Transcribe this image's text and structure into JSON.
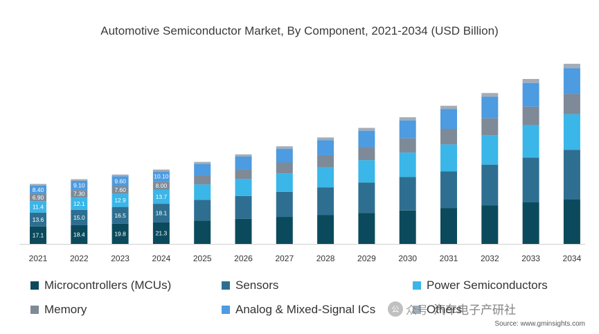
{
  "chart_data": {
    "type": "bar",
    "stacked": true,
    "title": "Automotive Semiconductor Market, By Component, 2021-2034 (USD Billion)",
    "categories": [
      "2021",
      "2022",
      "2023",
      "2024",
      "2025",
      "2026",
      "2027",
      "2028",
      "2029",
      "2030",
      "2031",
      "2032",
      "2033",
      "2034"
    ],
    "series": [
      {
        "name": "Microcontrollers (MCUs)",
        "color": "#0b4a5c",
        "values": [
          17.1,
          18.4,
          19.8,
          21.3,
          23.0,
          24.7,
          26.5,
          28.5,
          30.5,
          32.8,
          35.3,
          38.0,
          40.8,
          43.8
        ]
      },
      {
        "name": "Sensors",
        "color": "#2e6f91",
        "values": [
          13.6,
          15.0,
          16.5,
          18.1,
          20.3,
          22.4,
          24.6,
          27.1,
          29.8,
          32.9,
          36.0,
          39.8,
          44.0,
          48.6
        ]
      },
      {
        "name": "Power Semiconductors",
        "color": "#3ab6e8",
        "values": [
          11.4,
          12.1,
          12.9,
          13.7,
          15.1,
          16.6,
          18.2,
          19.9,
          21.9,
          24.0,
          26.4,
          28.9,
          31.8,
          34.9
        ]
      },
      {
        "name": "Memory",
        "color": "#7e8a98",
        "values": [
          6.9,
          7.3,
          7.6,
          8.0,
          8.9,
          9.7,
          10.6,
          11.6,
          12.7,
          13.9,
          15.2,
          16.6,
          18.2,
          19.9
        ]
      },
      {
        "name": "Analog & Mixed-Signal ICs",
        "color": "#4d9be0",
        "values": [
          8.4,
          9.1,
          9.6,
          10.1,
          11.2,
          12.3,
          13.5,
          14.8,
          16.2,
          17.7,
          19.4,
          21.2,
          23.2,
          25.4
        ]
      },
      {
        "name": "Others",
        "color": "#a3adb8",
        "values": [
          1.5,
          1.6,
          1.7,
          1.8,
          2.0,
          2.2,
          2.4,
          2.6,
          2.8,
          3.0,
          3.3,
          3.6,
          3.9,
          4.2
        ]
      }
    ],
    "data_labels": {
      "2021": [
        "17.1",
        "13.6",
        "11.4",
        "6.90",
        "8.40",
        ""
      ],
      "2022": [
        "18.4",
        "15.0",
        "12.1",
        "7.30",
        "9.10",
        ""
      ],
      "2023": [
        "19.8",
        "16.5",
        "12.9",
        "7.60",
        "9.60",
        ""
      ],
      "2024": [
        "21.3",
        "18.1",
        "13.7",
        "8.00",
        "10.10",
        ""
      ]
    },
    "ylim": [
      0,
      185
    ],
    "grid": false,
    "legend_position": "bottom"
  },
  "legend_items": [
    "Microcontrollers (MCUs)",
    "Sensors",
    "Power Semiconductors",
    "Memory",
    "Analog & Mixed-Signal ICs",
    "Others"
  ],
  "source": "Source: www.gminsights.com",
  "watermark": {
    "badge": "公",
    "text": "众号",
    "title": "汽车电子产研社"
  }
}
